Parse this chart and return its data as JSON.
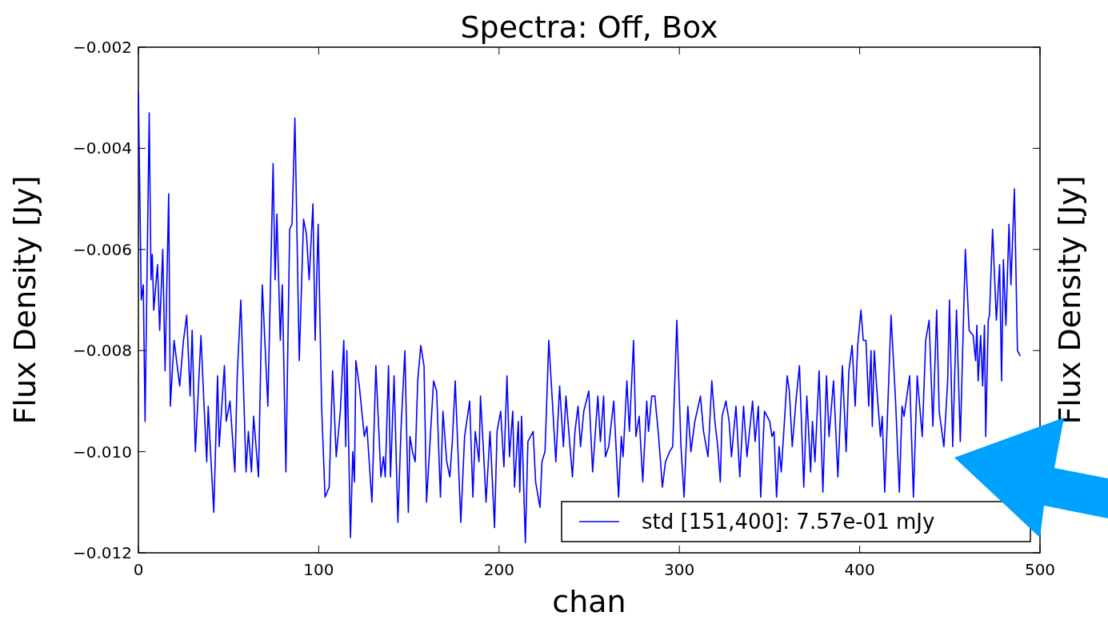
{
  "chart_data": {
    "type": "line",
    "title": "Spectra: Off, Box",
    "xlabel": "chan",
    "ylabel": "Flux Density [Jy]",
    "y2label": "Flux Density [Jy]",
    "xlim": [
      0,
      500
    ],
    "xticks": [
      0,
      100,
      200,
      300,
      400,
      500
    ],
    "ylim": [
      -0.012,
      -0.002
    ],
    "yticks": [
      {
        "value": -0.012,
        "label": "−0.012"
      },
      {
        "value": -0.01,
        "label": "−0.010"
      },
      {
        "value": -0.008,
        "label": "−0.008"
      },
      {
        "value": -0.006,
        "label": "−0.006"
      },
      {
        "value": -0.004,
        "label": "−0.004"
      },
      {
        "value": -0.002,
        "label": "−0.002"
      }
    ],
    "grid": false,
    "legend": "bottom right",
    "marker": "none",
    "line_style": "solid",
    "series": [
      {
        "name": "std [151,400]: 7.57e-01 mJy",
        "color": "#0000ff",
        "x": [
          0,
          1.6,
          2.7,
          3.7,
          6,
          7,
          7.7,
          8.5,
          10.6,
          11.8,
          13.5,
          14.8,
          16.8,
          17.7,
          19.8,
          22.9,
          25,
          26.8,
          28.7,
          29.8,
          31.6,
          34.7,
          36.3,
          37.9,
          38.7,
          40,
          41.8,
          43.9,
          44.8,
          47.7,
          48.7,
          50.8,
          53.5,
          54.8,
          56.8,
          59.7,
          61,
          62.7,
          63.9,
          66.6,
          68.7,
          71.8,
          74.7,
          75.8,
          76.8,
          78.7,
          79.8,
          81.8,
          83.9,
          85.2,
          86.8,
          89.2,
          91.6,
          93.2,
          94.7,
          96.8,
          98,
          99.7,
          101.6,
          103.5,
          105.8,
          107.7,
          109.7,
          112,
          113.9,
          115,
          115.6,
          117.6,
          118.9,
          119.8,
          120.6,
          122.5,
          125.3,
          126.7,
          129.5,
          131.7,
          134.5,
          135.9,
          136.9,
          138.7,
          139.8,
          141.8,
          143.9,
          145.7,
          147.8,
          149.7,
          150.6,
          152,
          153.5,
          154.9,
          156.6,
          158.4,
          159.8,
          161.9,
          163.7,
          165.4,
          167.5,
          168.9,
          171,
          172.7,
          174.1,
          175.7,
          178.8,
          180.9,
          183.7,
          185.5,
          186.8,
          188.9,
          189.7,
          191.4,
          192.8,
          195,
          197.5,
          198.9,
          200.9,
          202.7,
          204.4,
          205.8,
          207.6,
          208.6,
          210.7,
          211.5,
          212.5,
          214.6,
          216,
          218.9,
          220.3,
          222.7,
          223.8,
          225.5,
          227.6,
          229.4,
          231.5,
          233.6,
          235.7,
          237.1,
          240.7,
          242.1,
          243.8,
          245.2,
          247,
          249.8,
          251.9,
          254.8,
          256.2,
          258,
          259,
          260.8,
          263.6,
          266.3,
          267.8,
          268.8,
          270.9,
          272.3,
          274.6,
          275.9,
          277.7,
          279.7,
          281.9,
          282.9,
          284.7,
          286.4,
          288.5,
          290.6,
          292.3,
          294.6,
          296.3,
          298.6,
          300.9,
          302.6,
          304.7,
          306.4,
          308.6,
          311.7,
          313.4,
          315.9,
          318,
          319.7,
          321.3,
          322.7,
          323.7,
          325.8,
          327.6,
          328.9,
          331.4,
          333.5,
          335.6,
          337.5,
          340.6,
          342,
          343.8,
          345.1,
          347.2,
          350.1,
          351.4,
          352.5,
          353.9,
          355.3,
          356.5,
          358.1,
          359.8,
          361,
          362.6,
          364.9,
          366.6,
          369,
          370.7,
          372.8,
          373.8,
          375.2,
          377.5,
          379.6,
          381.6,
          383,
          385.5,
          387.9,
          390.4,
          392.5,
          394,
          395.8,
          397.5,
          398.9,
          400.7,
          402,
          403.5,
          405,
          406.3,
          407,
          408.1,
          409.4,
          411.5,
          412.5,
          413.9,
          417.4,
          419.9,
          422,
          423.5,
          424.6,
          427.7,
          429.8,
          431.9,
          434.7,
          436.6,
          438.5,
          440.6,
          442.7,
          444.1,
          446.7,
          448.8,
          449.8,
          451.6,
          453.7,
          455.8,
          458.6,
          460.7,
          462.9,
          464.3,
          465,
          465.7,
          467.1,
          468.2,
          469.2,
          469.9,
          471.3,
          472,
          473.7,
          475.8,
          477.6,
          478.7,
          479.7,
          481.1,
          482.8,
          483.9,
          485.8,
          487.5,
          488.9
        ],
        "values": [
          -0.0029,
          -0.007,
          -0.0067,
          -0.0094,
          -0.0033,
          -0.0066,
          -0.0061,
          -0.0072,
          -0.0063,
          -0.0076,
          -0.006,
          -0.0084,
          -0.0049,
          -0.0091,
          -0.0078,
          -0.0087,
          -0.0078,
          -0.0073,
          -0.0089,
          -0.0076,
          -0.01,
          -0.0077,
          -0.009,
          -0.0102,
          -0.0091,
          -0.01,
          -0.0112,
          -0.0085,
          -0.0099,
          -0.0083,
          -0.0094,
          -0.009,
          -0.0104,
          -0.0085,
          -0.007,
          -0.0104,
          -0.0096,
          -0.0104,
          -0.0093,
          -0.0105,
          -0.0067,
          -0.0091,
          -0.0043,
          -0.0066,
          -0.0053,
          -0.0078,
          -0.0067,
          -0.0104,
          -0.0056,
          -0.0055,
          -0.0034,
          -0.0082,
          -0.0054,
          -0.0057,
          -0.0066,
          -0.0051,
          -0.0078,
          -0.0055,
          -0.0091,
          -0.0109,
          -0.0107,
          -0.0084,
          -0.0101,
          -0.0092,
          -0.0078,
          -0.0099,
          -0.008,
          -0.0117,
          -0.01,
          -0.0106,
          -0.0082,
          -0.0087,
          -0.0097,
          -0.0095,
          -0.011,
          -0.0083,
          -0.0105,
          -0.0101,
          -0.0105,
          -0.0083,
          -0.0105,
          -0.0085,
          -0.0114,
          -0.0095,
          -0.008,
          -0.0112,
          -0.0097,
          -0.01,
          -0.0102,
          -0.0086,
          -0.0079,
          -0.0083,
          -0.011,
          -0.0097,
          -0.0086,
          -0.0088,
          -0.0109,
          -0.0092,
          -0.0102,
          -0.0105,
          -0.0098,
          -0.0086,
          -0.0114,
          -0.0097,
          -0.009,
          -0.0109,
          -0.0096,
          -0.0102,
          -0.0089,
          -0.01,
          -0.011,
          -0.0096,
          -0.0115,
          -0.0096,
          -0.0092,
          -0.0103,
          -0.0085,
          -0.0101,
          -0.0092,
          -0.0107,
          -0.0094,
          -0.0108,
          -0.0093,
          -0.0118,
          -0.0098,
          -0.0096,
          -0.0106,
          -0.0111,
          -0.0102,
          -0.01,
          -0.0078,
          -0.0089,
          -0.0102,
          -0.0087,
          -0.0099,
          -0.0089,
          -0.0105,
          -0.0096,
          -0.0091,
          -0.0099,
          -0.0092,
          -0.0088,
          -0.0104,
          -0.0089,
          -0.0098,
          -0.0089,
          -0.0101,
          -0.0099,
          -0.009,
          -0.0109,
          -0.0097,
          -0.0101,
          -0.0086,
          -0.0096,
          -0.0078,
          -0.0097,
          -0.0093,
          -0.0106,
          -0.009,
          -0.0096,
          -0.0089,
          -0.0089,
          -0.0097,
          -0.0107,
          -0.0102,
          -0.01,
          -0.0099,
          -0.0074,
          -0.0099,
          -0.0109,
          -0.0091,
          -0.01,
          -0.0094,
          -0.0089,
          -0.0096,
          -0.0101,
          -0.0086,
          -0.0094,
          -0.0099,
          -0.0106,
          -0.0093,
          -0.009,
          -0.0094,
          -0.0101,
          -0.0091,
          -0.0105,
          -0.0091,
          -0.0101,
          -0.009,
          -0.0098,
          -0.0091,
          -0.0109,
          -0.0092,
          -0.0094,
          -0.0097,
          -0.0096,
          -0.0109,
          -0.0099,
          -0.0104,
          -0.0095,
          -0.0085,
          -0.0088,
          -0.0099,
          -0.0089,
          -0.0083,
          -0.0107,
          -0.0089,
          -0.0104,
          -0.0094,
          -0.0102,
          -0.0084,
          -0.0108,
          -0.0085,
          -0.0097,
          -0.0086,
          -0.0105,
          -0.0083,
          -0.01,
          -0.0084,
          -0.0079,
          -0.0091,
          -0.0079,
          -0.0072,
          -0.0078,
          -0.0078,
          -0.0091,
          -0.008,
          -0.0095,
          -0.008,
          -0.0087,
          -0.0097,
          -0.0093,
          -0.0108,
          -0.0073,
          -0.009,
          -0.0108,
          -0.0091,
          -0.0093,
          -0.0085,
          -0.0109,
          -0.0085,
          -0.0097,
          -0.0078,
          -0.0074,
          -0.0095,
          -0.0072,
          -0.0092,
          -0.0099,
          -0.0086,
          -0.007,
          -0.0099,
          -0.0072,
          -0.0098,
          -0.006,
          -0.0076,
          -0.0077,
          -0.0082,
          -0.0075,
          -0.0086,
          -0.0077,
          -0.0087,
          -0.0075,
          -0.0097,
          -0.0074,
          -0.0073,
          -0.0056,
          -0.0074,
          -0.0063,
          -0.0086,
          -0.0062,
          -0.0075,
          -0.0055,
          -0.0067,
          -0.0048,
          -0.008,
          -0.0081
        ]
      }
    ]
  }
}
